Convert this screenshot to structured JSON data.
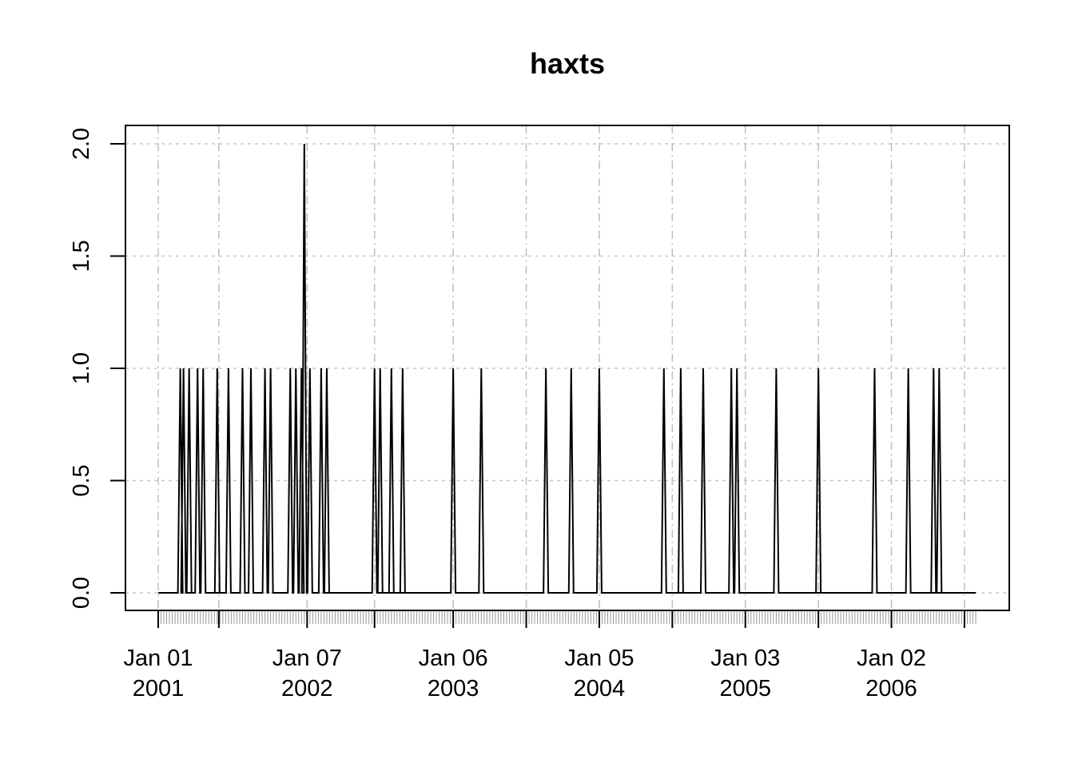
{
  "chart_data": {
    "type": "line",
    "title": "haxts",
    "xlabel": "",
    "ylabel": "",
    "ylim": [
      0,
      2
    ],
    "xlim": [
      "2001-01-01",
      "2006-07-31"
    ],
    "grid": true,
    "yticks": [
      "0.0",
      "0.5",
      "1.0",
      "1.5",
      "2.0"
    ],
    "xticks": [
      {
        "date": "2001-01-01",
        "label1": "Jan 01",
        "label2": "2001"
      },
      {
        "date": "2001-06-01",
        "label1": "",
        "label2": ""
      },
      {
        "date": "2002-01-07",
        "label1": "Jan 07",
        "label2": "2002"
      },
      {
        "date": "2002-06-24",
        "label1": "",
        "label2": ""
      },
      {
        "date": "2003-01-06",
        "label1": "Jan 06",
        "label2": "2003"
      },
      {
        "date": "2003-07-07",
        "label1": "",
        "label2": ""
      },
      {
        "date": "2004-01-05",
        "label1": "Jan 05",
        "label2": "2004"
      },
      {
        "date": "2004-07-05",
        "label1": "",
        "label2": ""
      },
      {
        "date": "2005-01-03",
        "label1": "Jan 03",
        "label2": "2005"
      },
      {
        "date": "2005-07-04",
        "label1": "",
        "label2": ""
      },
      {
        "date": "2006-01-02",
        "label1": "Jan 02",
        "label2": "2006"
      },
      {
        "date": "2006-07-03",
        "label1": "",
        "label2": ""
      }
    ],
    "series": [
      {
        "color": "#000000",
        "x": [
          "2001-01-01",
          "2001-02-25",
          "2001-03-05",
          "2001-03-19",
          "2001-03-19",
          "2001-03-26",
          "2001-04-09",
          "2001-04-23",
          "2001-05-28",
          "2001-05-28",
          "2001-06-25",
          "2001-07-30",
          "2001-08-20",
          "2001-09-24",
          "2001-10-08",
          "2001-11-26",
          "2001-12-10",
          "2001-12-24",
          "2001-12-31",
          "2002-01-07",
          "2002-01-14",
          "2002-02-11",
          "2002-02-25",
          "2002-02-25",
          "2002-06-24",
          "2002-07-08",
          "2002-07-08",
          "2002-08-05",
          "2002-08-05",
          "2002-09-02",
          "2002-09-02",
          "2003-01-06",
          "2003-03-17",
          "2003-08-25",
          "2003-10-27",
          "2004-01-05",
          "2004-06-14",
          "2004-07-26",
          "2004-07-26",
          "2004-09-20",
          "2004-11-29",
          "2004-12-13",
          "2005-03-21",
          "2005-07-04",
          "2005-07-04",
          "2005-11-21",
          "2006-02-13",
          "2006-04-17",
          "2006-04-17",
          "2006-05-01",
          "2006-05-01",
          "2006-07-24"
        ],
        "y": [
          0,
          1,
          1,
          1,
          1,
          0,
          1,
          1,
          1,
          1,
          1,
          1,
          1,
          1,
          1,
          1,
          1,
          1,
          2,
          0,
          1,
          1,
          1,
          1,
          1,
          1,
          1,
          1,
          1,
          1,
          1,
          1,
          1,
          1,
          1,
          1,
          1,
          1,
          1,
          1,
          1,
          1,
          1,
          1,
          1,
          1,
          1,
          1,
          1,
          1,
          1,
          0
        ]
      }
    ]
  }
}
